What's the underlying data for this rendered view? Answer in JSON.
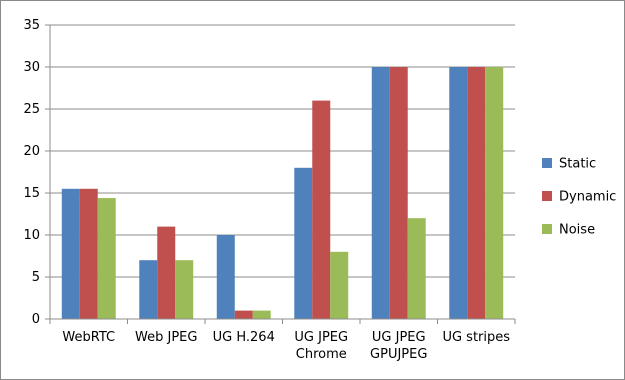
{
  "chart_data": {
    "type": "bar",
    "title": "",
    "xlabel": "",
    "ylabel": "",
    "ylim": [
      0,
      35
    ],
    "ytick_step": 5,
    "grid": true,
    "legend_position": "right",
    "categories": [
      [
        "WebRTC"
      ],
      [
        "Web JPEG"
      ],
      [
        "UG H.264"
      ],
      [
        "UG JPEG",
        "Chrome"
      ],
      [
        "UG JPEG",
        "GPUJPEG"
      ],
      [
        "UG stripes"
      ]
    ],
    "yticks": [
      "0",
      "5",
      "10",
      "15",
      "20",
      "25",
      "30",
      "35"
    ],
    "series": [
      {
        "name": "Static",
        "color": "#4F81BD",
        "values": [
          15.5,
          7,
          10,
          18,
          30,
          30
        ]
      },
      {
        "name": "Dynamic",
        "color": "#C0504D",
        "values": [
          15.5,
          11,
          1,
          26,
          30,
          30
        ]
      },
      {
        "name": "Noise",
        "color": "#9BBB59",
        "values": [
          14.4,
          7,
          1,
          8,
          12,
          30
        ]
      }
    ]
  }
}
